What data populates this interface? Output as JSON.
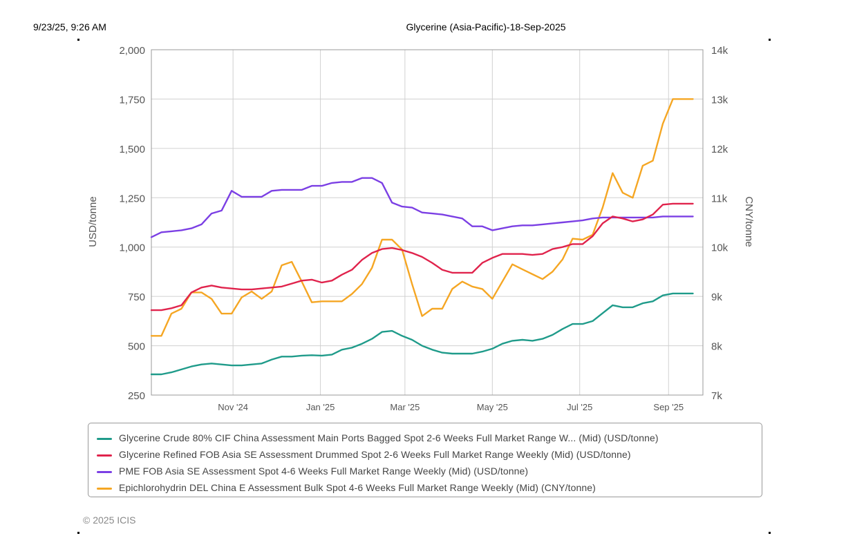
{
  "header": {
    "timestamp": "9/23/25, 9:26 AM",
    "title": "Glycerine (Asia-Pacific)-18-Sep-2025"
  },
  "copyright": "© 2025 ICIS",
  "chart_data": {
    "type": "line",
    "title": "",
    "xlabel": "",
    "ylabel": "USD/tonne",
    "y2label": "CNY/tonne",
    "ylim": [
      250,
      2000
    ],
    "y2lim": [
      7000,
      14000
    ],
    "yticks": [
      250,
      500,
      750,
      1000,
      1250,
      1500,
      1750,
      2000
    ],
    "ytick_labels": [
      "250",
      "500",
      "750",
      "1,000",
      "1,250",
      "1,500",
      "1,750",
      "2,000"
    ],
    "y2ticks": [
      7000,
      8000,
      9000,
      10000,
      11000,
      12000,
      13000,
      14000
    ],
    "y2tick_labels": [
      "7k",
      "8k",
      "9k",
      "10k",
      "11k",
      "12k",
      "13k",
      "14k"
    ],
    "xlim": [
      "2024-09-05",
      "2025-09-25"
    ],
    "xticks": [
      "2024-11-01",
      "2025-01-01",
      "2025-03-01",
      "2025-05-01",
      "2025-07-01",
      "2025-09-01"
    ],
    "xtick_labels": [
      "Nov '24",
      "Jan '25",
      "Mar '25",
      "May '25",
      "Jul '25",
      "Sep '25"
    ],
    "grid": true,
    "legend_position": "bottom",
    "x": [
      "2024-09-05",
      "2024-09-12",
      "2024-09-19",
      "2024-09-26",
      "2024-10-03",
      "2024-10-10",
      "2024-10-17",
      "2024-10-24",
      "2024-10-31",
      "2024-11-07",
      "2024-11-14",
      "2024-11-21",
      "2024-11-28",
      "2024-12-05",
      "2024-12-12",
      "2024-12-19",
      "2024-12-26",
      "2025-01-02",
      "2025-01-09",
      "2025-01-16",
      "2025-01-23",
      "2025-01-30",
      "2025-02-06",
      "2025-02-13",
      "2025-02-20",
      "2025-02-27",
      "2025-03-06",
      "2025-03-13",
      "2025-03-20",
      "2025-03-27",
      "2025-04-03",
      "2025-04-10",
      "2025-04-17",
      "2025-04-24",
      "2025-05-01",
      "2025-05-08",
      "2025-05-15",
      "2025-05-22",
      "2025-05-29",
      "2025-06-05",
      "2025-06-12",
      "2025-06-19",
      "2025-06-26",
      "2025-07-03",
      "2025-07-10",
      "2025-07-17",
      "2025-07-24",
      "2025-07-31",
      "2025-08-07",
      "2025-08-14",
      "2025-08-21",
      "2025-08-28",
      "2025-09-04",
      "2025-09-11",
      "2025-09-18"
    ],
    "series": [
      {
        "name": "Glycerine Crude 80% CIF China Assessment Main Ports Bagged Spot 2-6 Weeks Full Market Range W... (Mid) (USD/tonne)",
        "color": "#1f9b8a",
        "axis": "left",
        "values": [
          355,
          355,
          365,
          380,
          395,
          405,
          410,
          405,
          400,
          400,
          405,
          410,
          430,
          445,
          445,
          450,
          452,
          450,
          455,
          480,
          490,
          510,
          535,
          570,
          575,
          550,
          530,
          500,
          480,
          465,
          460,
          460,
          460,
          470,
          485,
          510,
          525,
          530,
          525,
          535,
          555,
          585,
          610,
          610,
          625,
          665,
          705,
          695,
          695,
          715,
          725,
          755,
          765,
          765,
          765
        ]
      },
      {
        "name": "Glycerine Refined FOB Asia SE Assessment Drummed Spot 2-6 Weeks Full Market Range Weekly (Mid) (USD/tonne)",
        "color": "#e0234c",
        "axis": "left",
        "values": [
          680,
          680,
          690,
          705,
          770,
          795,
          805,
          795,
          790,
          785,
          785,
          790,
          795,
          800,
          815,
          830,
          835,
          820,
          830,
          860,
          885,
          935,
          970,
          990,
          995,
          985,
          970,
          950,
          920,
          885,
          870,
          870,
          870,
          920,
          945,
          965,
          965,
          965,
          960,
          965,
          990,
          1000,
          1015,
          1015,
          1055,
          1120,
          1155,
          1145,
          1130,
          1140,
          1165,
          1215,
          1220,
          1220,
          1220
        ]
      },
      {
        "name": "PME FOB Asia SE Assessment Spot 4-6 Weeks Full Market Range Weekly (Mid) (USD/tonne)",
        "color": "#7b3fe4",
        "axis": "left",
        "values": [
          1050,
          1075,
          1080,
          1085,
          1095,
          1115,
          1170,
          1185,
          1285,
          1255,
          1255,
          1255,
          1285,
          1290,
          1290,
          1290,
          1310,
          1310,
          1325,
          1330,
          1330,
          1350,
          1350,
          1325,
          1225,
          1205,
          1200,
          1175,
          1170,
          1165,
          1155,
          1145,
          1105,
          1105,
          1085,
          1095,
          1105,
          1110,
          1110,
          1115,
          1120,
          1125,
          1130,
          1135,
          1145,
          1150,
          1150,
          1150,
          1150,
          1150,
          1150,
          1155,
          1155,
          1155,
          1155
        ]
      },
      {
        "name": "Epichlorohydrin DEL China E Assessment Bulk Spot 4-6 Weeks Full Market Range Weekly (Mid) (CNY/tonne)",
        "color": "#f5a623",
        "axis": "right",
        "values": [
          8200,
          8200,
          8650,
          8750,
          9080,
          9080,
          8950,
          8650,
          8650,
          8980,
          9100,
          8950,
          9100,
          9630,
          9700,
          9300,
          8880,
          8900,
          8900,
          8900,
          9050,
          9250,
          9580,
          10150,
          10150,
          9950,
          9250,
          8600,
          8750,
          8750,
          9150,
          9300,
          9200,
          9150,
          8950,
          9300,
          9650,
          9550,
          9450,
          9350,
          9500,
          9750,
          10170,
          10150,
          10250,
          10800,
          11500,
          11100,
          11000,
          11650,
          11750,
          12500,
          13000,
          13000,
          13000
        ]
      }
    ]
  }
}
